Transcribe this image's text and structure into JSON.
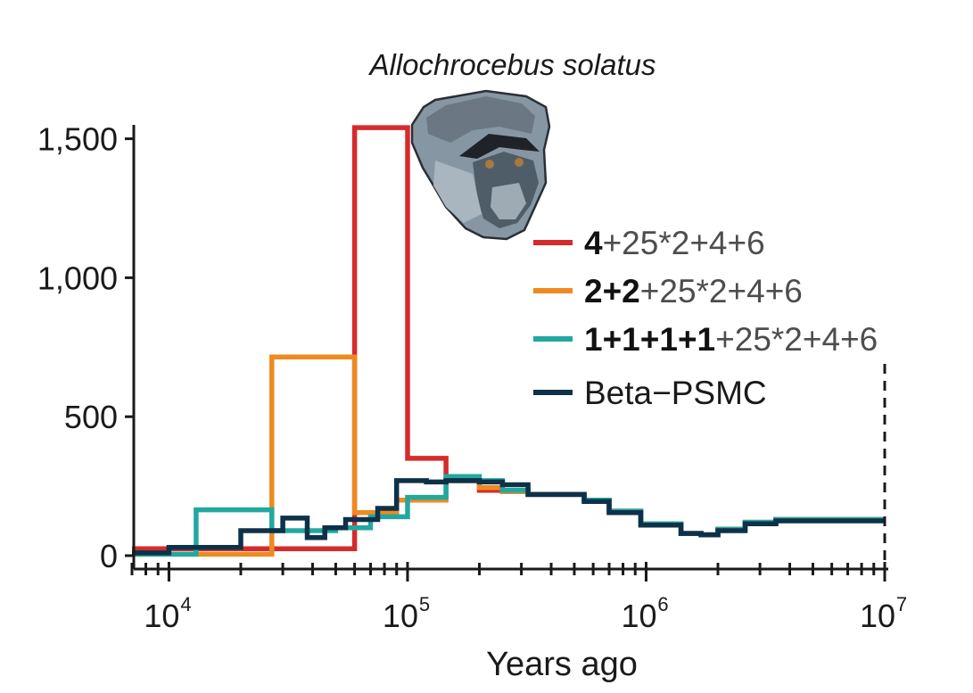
{
  "chart_data": {
    "type": "line",
    "title": "Allochrocebus solatus",
    "xlabel": "Years ago",
    "ylabel": "",
    "x_scale": "log",
    "xlim": [
      7000,
      10000000
    ],
    "ylim": [
      0,
      1550
    ],
    "x_ticks": [
      {
        "base": "10",
        "exp": "4",
        "value": 10000
      },
      {
        "base": "10",
        "exp": "5",
        "value": 100000
      },
      {
        "base": "10",
        "exp": "6",
        "value": 1000000
      },
      {
        "base": "10",
        "exp": "7",
        "value": 10000000
      }
    ],
    "y_ticks": [
      {
        "label": "0",
        "value": 0
      },
      {
        "label": "500",
        "value": 500
      },
      {
        "label": "1,000",
        "value": 1000
      },
      {
        "label": "1,500",
        "value": 1500
      }
    ],
    "reference_line_x": 10000000,
    "legend_position": "right",
    "series": [
      {
        "name_bold": "4",
        "name_rest": "+25*2+4+6",
        "color": "#d62b2b",
        "x": [
          7000,
          60000,
          60000,
          100000,
          100000,
          145000,
          145000,
          200000,
          200000,
          250000,
          250000,
          320000,
          320000,
          550000,
          550000,
          700000,
          700000,
          950000,
          950000,
          1400000,
          1400000,
          1700000,
          1700000,
          2000000,
          2000000,
          2600000,
          2600000,
          3500000,
          3500000,
          10000000
        ],
        "y": [
          25,
          25,
          1540,
          1540,
          350,
          350,
          270,
          270,
          235,
          235,
          230,
          230,
          220,
          220,
          200,
          200,
          160,
          160,
          115,
          115,
          80,
          80,
          75,
          75,
          95,
          95,
          120,
          120,
          130,
          130
        ]
      },
      {
        "name_bold": "2+2",
        "name_rest": "+25*2+4+6",
        "color": "#ee8a22",
        "x": [
          7000,
          27000,
          27000,
          60000,
          60000,
          90000,
          90000,
          145000,
          145000,
          200000,
          200000,
          250000,
          250000,
          320000,
          320000,
          550000,
          550000,
          700000,
          700000,
          950000,
          950000,
          1400000,
          1400000,
          1700000,
          1700000,
          2000000,
          2000000,
          2600000,
          2600000,
          3500000,
          3500000,
          10000000
        ],
        "y": [
          5,
          5,
          715,
          715,
          155,
          155,
          200,
          200,
          270,
          270,
          245,
          245,
          230,
          230,
          220,
          220,
          200,
          200,
          160,
          160,
          115,
          115,
          80,
          80,
          75,
          75,
          95,
          95,
          120,
          120,
          130,
          130
        ]
      },
      {
        "name_bold": "1+1+1+1",
        "name_rest": "+25*2+4+6",
        "color": "#22a8a0",
        "x": [
          7000,
          13000,
          13000,
          27000,
          27000,
          50000,
          50000,
          70000,
          70000,
          100000,
          100000,
          145000,
          145000,
          200000,
          200000,
          250000,
          250000,
          320000,
          320000,
          550000,
          550000,
          700000,
          700000,
          950000,
          950000,
          1400000,
          1400000,
          1700000,
          1700000,
          2000000,
          2000000,
          2600000,
          2600000,
          3500000,
          3500000,
          10000000
        ],
        "y": [
          5,
          5,
          165,
          165,
          90,
          90,
          100,
          100,
          140,
          140,
          210,
          210,
          285,
          285,
          270,
          270,
          235,
          235,
          220,
          220,
          200,
          200,
          160,
          160,
          115,
          115,
          80,
          80,
          75,
          75,
          95,
          95,
          120,
          120,
          130,
          130
        ]
      },
      {
        "name_bold": "",
        "name_rest": "Beta−PSMC",
        "color": "#0d3148",
        "x": [
          7000,
          10000,
          10000,
          20000,
          20000,
          30000,
          30000,
          38000,
          38000,
          45000,
          45000,
          55000,
          55000,
          75000,
          75000,
          90000,
          90000,
          120000,
          120000,
          145000,
          145000,
          200000,
          200000,
          250000,
          250000,
          320000,
          320000,
          550000,
          550000,
          700000,
          700000,
          950000,
          950000,
          1400000,
          1400000,
          1700000,
          1700000,
          2000000,
          2000000,
          2600000,
          2600000,
          3500000,
          3500000,
          10000000
        ],
        "y": [
          10,
          10,
          30,
          30,
          90,
          90,
          135,
          135,
          65,
          65,
          100,
          100,
          130,
          130,
          170,
          170,
          270,
          270,
          265,
          265,
          270,
          270,
          265,
          265,
          255,
          255,
          220,
          220,
          195,
          195,
          155,
          155,
          110,
          110,
          80,
          80,
          75,
          75,
          90,
          90,
          115,
          115,
          125,
          125
        ]
      }
    ]
  }
}
